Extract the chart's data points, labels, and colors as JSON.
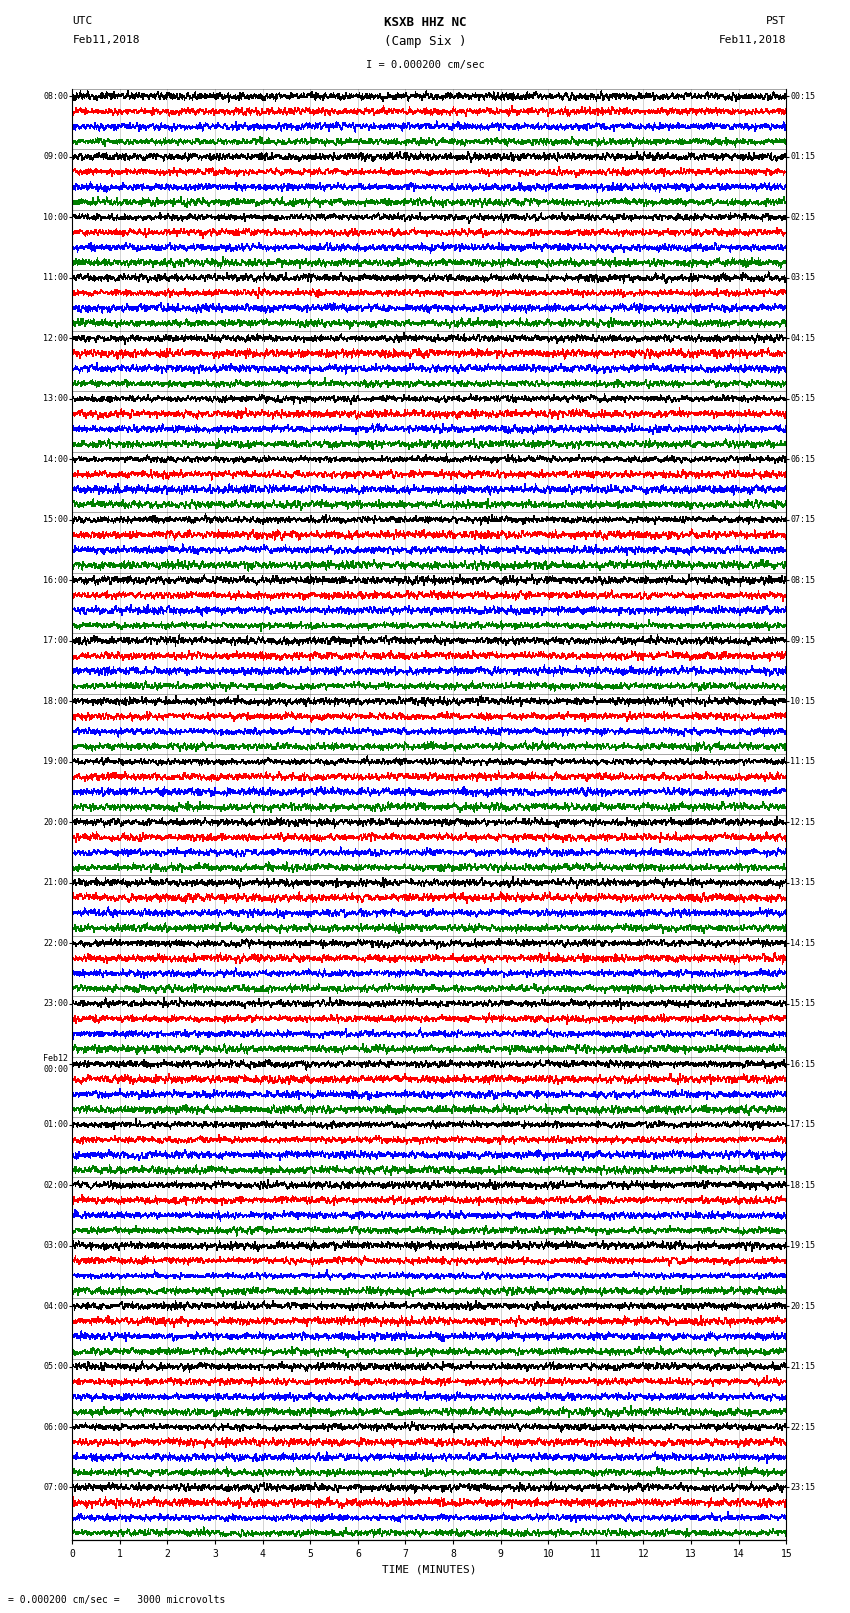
{
  "title_line1": "KSXB HHZ NC",
  "title_line2": "(Camp Six )",
  "scale_label": "I = 0.000200 cm/sec",
  "bottom_text": "= 0.000200 cm/sec =   3000 microvolts",
  "utc_label1": "UTC",
  "utc_label2": "Feb11,2018",
  "pst_label1": "PST",
  "pst_label2": "Feb11,2018",
  "xlabel": "TIME (MINUTES)",
  "utc_times_left": [
    "08:00",
    "09:00",
    "10:00",
    "11:00",
    "12:00",
    "13:00",
    "14:00",
    "15:00",
    "16:00",
    "17:00",
    "18:00",
    "19:00",
    "20:00",
    "21:00",
    "22:00",
    "23:00",
    "Feb12\n00:00",
    "01:00",
    "02:00",
    "03:00",
    "04:00",
    "05:00",
    "06:00",
    "07:00"
  ],
  "pst_times_right": [
    "00:15",
    "01:15",
    "02:15",
    "03:15",
    "04:15",
    "05:15",
    "06:15",
    "07:15",
    "08:15",
    "09:15",
    "10:15",
    "11:15",
    "12:15",
    "13:15",
    "14:15",
    "15:15",
    "16:15",
    "17:15",
    "18:15",
    "19:15",
    "20:15",
    "21:15",
    "22:15",
    "23:15"
  ],
  "n_rows": 24,
  "traces_per_row": 4,
  "colors": [
    "black",
    "red",
    "blue",
    "green"
  ],
  "time_minutes": 15,
  "figsize": [
    8.5,
    16.13
  ],
  "dpi": 100,
  "bg_color": "white",
  "line_width": 0.3
}
